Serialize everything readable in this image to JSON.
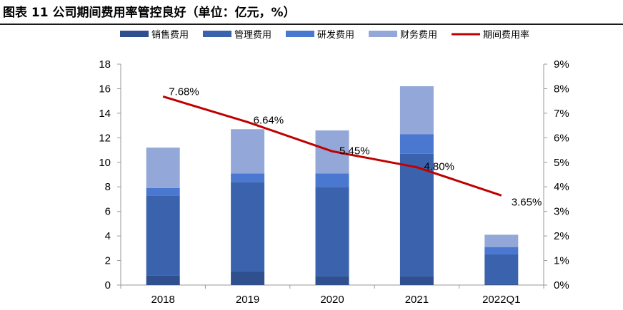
{
  "header": {
    "title": "图表 11 公司期间费用率管控良好（单位：亿元，%）"
  },
  "chart_data": {
    "type": "bar",
    "stacked": true,
    "categories": [
      "2018",
      "2019",
      "2020",
      "2021",
      "2022Q1"
    ],
    "series": [
      {
        "name": "销售费用",
        "kind": "bar",
        "axis": "left",
        "color": "#2f4f8f",
        "values": [
          0.8,
          1.1,
          0.7,
          0.7,
          0.1
        ]
      },
      {
        "name": "管理费用",
        "kind": "bar",
        "axis": "left",
        "color": "#3b63ad",
        "values": [
          6.5,
          7.3,
          7.3,
          10.0,
          2.4
        ]
      },
      {
        "name": "研发费用",
        "kind": "bar",
        "axis": "left",
        "color": "#4a78d0",
        "values": [
          0.6,
          0.7,
          1.1,
          1.6,
          0.6
        ]
      },
      {
        "name": "财务费用",
        "kind": "bar",
        "axis": "left",
        "color": "#93a8d8",
        "values": [
          3.3,
          3.6,
          3.5,
          3.9,
          1.0
        ]
      },
      {
        "name": "期间费用率",
        "kind": "line",
        "axis": "right",
        "color": "#c00000",
        "values": [
          7.68,
          6.64,
          5.45,
          4.8,
          3.65
        ]
      }
    ],
    "line_labels": [
      "7.68%",
      "6.64%",
      "5.45%",
      "4.80%",
      "3.65%"
    ],
    "y_left": {
      "min": 0,
      "max": 18,
      "step": 2,
      "ticks": [
        "0",
        "2",
        "4",
        "6",
        "8",
        "10",
        "12",
        "14",
        "16",
        "18"
      ]
    },
    "y_right": {
      "min": 0,
      "max": 9,
      "step": 1,
      "ticks": [
        "0%",
        "1%",
        "2%",
        "3%",
        "4%",
        "5%",
        "6%",
        "7%",
        "8%",
        "9%"
      ]
    },
    "legend_position": "top",
    "grid": false
  }
}
